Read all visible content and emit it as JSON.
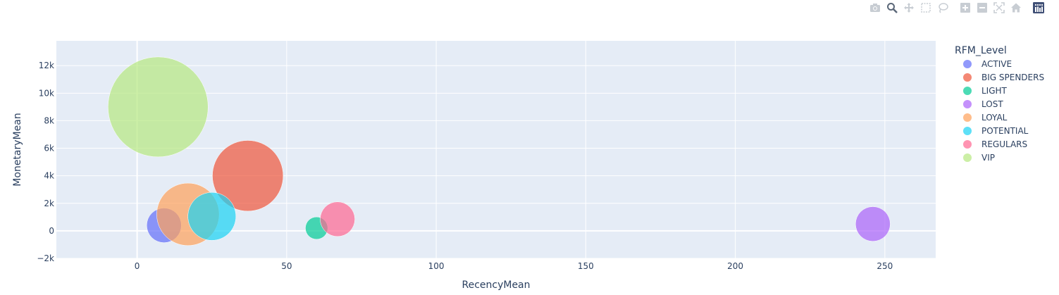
{
  "modebar": {
    "buttons": [
      {
        "name": "camera-icon",
        "title": "Download plot as a png"
      },
      {
        "name": "zoom-icon",
        "title": "Zoom"
      },
      {
        "name": "pan-icon",
        "title": "Pan"
      },
      {
        "name": "box-select-icon",
        "title": "Box Select"
      },
      {
        "name": "lasso-select-icon",
        "title": "Lasso Select"
      },
      {
        "name": "zoom-in-icon",
        "title": "Zoom in"
      },
      {
        "name": "zoom-out-icon",
        "title": "Zoom out"
      },
      {
        "name": "autoscale-icon",
        "title": "Autoscale"
      },
      {
        "name": "reset-axes-icon",
        "title": "Reset axes"
      },
      {
        "name": "plotly-logo-icon",
        "title": "Produced with Plotly"
      }
    ]
  },
  "chart_data": {
    "type": "scatter",
    "variant": "bubble",
    "xlabel": "RecencyMean",
    "ylabel": "MonetaryMean",
    "xlim": [
      -27,
      267
    ],
    "ylim": [
      -2000,
      13800
    ],
    "xticks": [
      0,
      50,
      100,
      150,
      200,
      250
    ],
    "yticks": [
      -2000,
      0,
      2000,
      4000,
      6000,
      8000,
      10000,
      12000
    ],
    "ytick_labels": [
      "−2k",
      "0",
      "2k",
      "4k",
      "6k",
      "8k",
      "10k",
      "12k"
    ],
    "grid": true,
    "legend_title": "RFM_Level",
    "legend_position": "right",
    "bubble_size_note": "bubble area proportional to relative size",
    "series": [
      {
        "name": "ACTIVE",
        "color": "#636efa",
        "x": 9,
        "y": 400,
        "size": 0.12
      },
      {
        "name": "BIG SPENDERS",
        "color": "#EF553B",
        "x": 37,
        "y": 4000,
        "size": 0.5
      },
      {
        "name": "LIGHT",
        "color": "#00cc96",
        "x": 60,
        "y": 200,
        "size": 0.05
      },
      {
        "name": "LOST",
        "color": "#ab63fa",
        "x": 246,
        "y": 500,
        "size": 0.12
      },
      {
        "name": "LOYAL",
        "color": "#FFA15A",
        "x": 17,
        "y": 1200,
        "size": 0.39
      },
      {
        "name": "POTENTIAL",
        "color": "#19d3f3",
        "x": 25,
        "y": 1050,
        "size": 0.23
      },
      {
        "name": "REGULARS",
        "color": "#FF6692",
        "x": 67,
        "y": 850,
        "size": 0.12
      },
      {
        "name": "VIP",
        "color": "#B6E880",
        "x": 7,
        "y": 9000,
        "size": 1.0
      }
    ]
  },
  "colors": {
    "plot_bg": "#e5ecf6",
    "grid": "#ffffff",
    "text": "#2a3f5f"
  }
}
